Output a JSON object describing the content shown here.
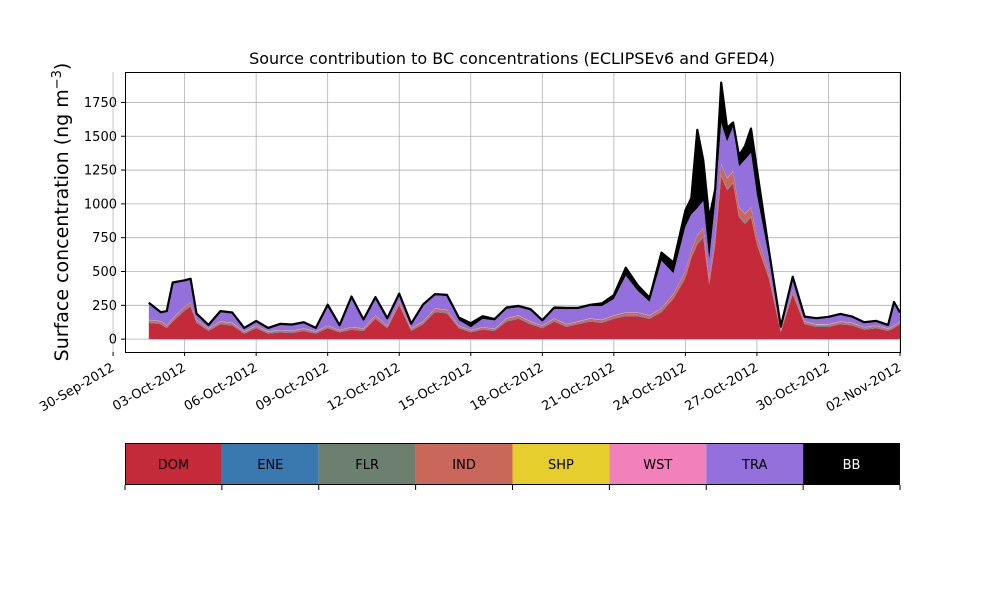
{
  "chart_data": {
    "type": "area",
    "title": "Source contribution to BC concentrations (ECLIPSEv6 and GFED4)",
    "ylabel_main": "Surface concentration (ng m",
    "ylabel_sup": "−3",
    "ylabel_close": ")",
    "xlabel": "",
    "ylim": [
      -95,
      1975
    ],
    "xlim": [
      "2012-09-30T12:00",
      "2012-11-02T00:00"
    ],
    "grid": true,
    "y_ticks": [
      0,
      250,
      500,
      750,
      1000,
      1250,
      1500,
      1750
    ],
    "y_tick_labels": [
      "0",
      "250",
      "500",
      "750",
      "1000",
      "1250",
      "1500",
      "1750"
    ],
    "x_ticks": [
      "2012-09-30",
      "2012-10-03",
      "2012-10-06",
      "2012-10-09",
      "2012-10-12",
      "2012-10-15",
      "2012-10-18",
      "2012-10-21",
      "2012-10-24",
      "2012-10-27",
      "2012-10-30",
      "2012-11-02"
    ],
    "x_tick_labels": [
      "30-Sep-2012",
      "03-Oct-2012",
      "06-Oct-2012",
      "09-Oct-2012",
      "12-Oct-2012",
      "15-Oct-2012",
      "18-Oct-2012",
      "21-Oct-2012",
      "24-Oct-2012",
      "27-Oct-2012",
      "30-Oct-2012",
      "02-Nov-2012"
    ],
    "x": [
      "2012-10-01T12:00",
      "2012-10-02T00:00",
      "2012-10-02T06:00",
      "2012-10-02T12:00",
      "2012-10-03T00:00",
      "2012-10-03T06:00",
      "2012-10-03T12:00",
      "2012-10-04T00:00",
      "2012-10-04T12:00",
      "2012-10-05T00:00",
      "2012-10-05T12:00",
      "2012-10-06T00:00",
      "2012-10-06T12:00",
      "2012-10-07T00:00",
      "2012-10-07T12:00",
      "2012-10-08T00:00",
      "2012-10-08T12:00",
      "2012-10-09T00:00",
      "2012-10-09T12:00",
      "2012-10-10T00:00",
      "2012-10-10T12:00",
      "2012-10-11T00:00",
      "2012-10-11T12:00",
      "2012-10-12T00:00",
      "2012-10-12T12:00",
      "2012-10-13T00:00",
      "2012-10-13T12:00",
      "2012-10-14T00:00",
      "2012-10-14T12:00",
      "2012-10-15T00:00",
      "2012-10-15T12:00",
      "2012-10-16T00:00",
      "2012-10-16T12:00",
      "2012-10-17T00:00",
      "2012-10-17T12:00",
      "2012-10-18T00:00",
      "2012-10-18T12:00",
      "2012-10-19T00:00",
      "2012-10-19T12:00",
      "2012-10-20T00:00",
      "2012-10-20T12:00",
      "2012-10-21T00:00",
      "2012-10-21T12:00",
      "2012-10-22T00:00",
      "2012-10-22T12:00",
      "2012-10-23T00:00",
      "2012-10-23T12:00",
      "2012-10-24T00:00",
      "2012-10-24T06:00",
      "2012-10-24T12:00",
      "2012-10-24T18:00",
      "2012-10-25T00:00",
      "2012-10-25T06:00",
      "2012-10-25T12:00",
      "2012-10-25T18:00",
      "2012-10-26T00:00",
      "2012-10-26T06:00",
      "2012-10-26T12:00",
      "2012-10-26T18:00",
      "2012-10-27T00:00",
      "2012-10-27T12:00",
      "2012-10-28T00:00",
      "2012-10-28T12:00",
      "2012-10-29T00:00",
      "2012-10-29T12:00",
      "2012-10-30T00:00",
      "2012-10-30T12:00",
      "2012-10-31T00:00",
      "2012-10-31T12:00",
      "2012-11-01T00:00",
      "2012-11-01T12:00",
      "2012-11-01T18:00",
      "2012-11-02T00:00"
    ],
    "series": [
      {
        "name": "DOM",
        "color": "#c52a3a",
        "values": [
          120,
          110,
          80,
          130,
          210,
          240,
          120,
          60,
          110,
          100,
          40,
          80,
          40,
          50,
          45,
          60,
          40,
          80,
          50,
          70,
          60,
          150,
          80,
          250,
          60,
          110,
          200,
          190,
          80,
          50,
          70,
          60,
          130,
          150,
          110,
          80,
          130,
          90,
          110,
          130,
          120,
          150,
          170,
          170,
          150,
          200,
          300,
          450,
          600,
          700,
          750,
          400,
          700,
          1200,
          1100,
          1150,
          900,
          850,
          900,
          700,
          450,
          50,
          330,
          110,
          90,
          90,
          110,
          100,
          70,
          80,
          60,
          80,
          110
        ]
      },
      {
        "name": "ENE",
        "color": "#3a78b0",
        "values": [
          3,
          3,
          3,
          3,
          3,
          3,
          3,
          3,
          3,
          3,
          3,
          3,
          3,
          3,
          3,
          3,
          3,
          3,
          3,
          3,
          3,
          3,
          3,
          3,
          3,
          3,
          3,
          3,
          3,
          3,
          3,
          3,
          3,
          3,
          3,
          3,
          3,
          3,
          3,
          3,
          3,
          3,
          3,
          3,
          3,
          3,
          3,
          5,
          5,
          5,
          5,
          5,
          5,
          5,
          5,
          5,
          5,
          5,
          5,
          5,
          5,
          3,
          3,
          3,
          3,
          3,
          3,
          3,
          3,
          3,
          3,
          3,
          3
        ]
      },
      {
        "name": "FLR",
        "color": "#6d8070",
        "values": [
          6,
          6,
          6,
          6,
          6,
          6,
          6,
          6,
          6,
          6,
          6,
          6,
          6,
          6,
          6,
          6,
          6,
          6,
          6,
          6,
          6,
          6,
          6,
          6,
          6,
          6,
          6,
          6,
          6,
          6,
          6,
          6,
          6,
          6,
          6,
          6,
          6,
          6,
          6,
          6,
          6,
          6,
          6,
          6,
          6,
          6,
          6,
          8,
          8,
          8,
          8,
          8,
          8,
          8,
          8,
          8,
          8,
          8,
          8,
          8,
          8,
          6,
          6,
          6,
          6,
          6,
          6,
          6,
          6,
          6,
          6,
          6,
          6
        ]
      },
      {
        "name": "IND",
        "color": "#c9675a",
        "values": [
          12,
          12,
          10,
          12,
          18,
          20,
          12,
          8,
          10,
          10,
          6,
          8,
          6,
          6,
          6,
          8,
          6,
          8,
          6,
          8,
          8,
          14,
          8,
          20,
          8,
          10,
          16,
          16,
          8,
          6,
          8,
          6,
          12,
          14,
          10,
          8,
          12,
          10,
          10,
          12,
          12,
          14,
          16,
          16,
          14,
          18,
          25,
          35,
          45,
          50,
          55,
          35,
          50,
          80,
          75,
          75,
          60,
          60,
          60,
          50,
          35,
          6,
          25,
          10,
          8,
          8,
          10,
          10,
          8,
          8,
          8,
          8,
          10
        ]
      },
      {
        "name": "SHP",
        "color": "#e6cf2c",
        "values": [
          1,
          1,
          1,
          1,
          1,
          1,
          1,
          1,
          1,
          1,
          1,
          1,
          1,
          1,
          1,
          1,
          1,
          1,
          1,
          1,
          1,
          1,
          1,
          1,
          1,
          1,
          1,
          1,
          1,
          1,
          1,
          1,
          1,
          1,
          1,
          1,
          1,
          1,
          1,
          1,
          1,
          1,
          1,
          1,
          1,
          1,
          1,
          1,
          1,
          1,
          1,
          1,
          1,
          1,
          1,
          1,
          1,
          1,
          1,
          1,
          1,
          1,
          1,
          1,
          1,
          1,
          1,
          1,
          1,
          1,
          1,
          1,
          1
        ]
      },
      {
        "name": "WST",
        "color": "#f280ba",
        "values": [
          2,
          2,
          2,
          2,
          2,
          2,
          2,
          2,
          2,
          2,
          2,
          2,
          2,
          2,
          2,
          2,
          2,
          2,
          2,
          2,
          2,
          2,
          2,
          2,
          2,
          2,
          2,
          2,
          2,
          2,
          2,
          2,
          2,
          2,
          2,
          2,
          2,
          2,
          2,
          2,
          2,
          2,
          2,
          2,
          2,
          2,
          2,
          3,
          3,
          3,
          3,
          3,
          3,
          3,
          3,
          3,
          3,
          3,
          3,
          3,
          3,
          2,
          2,
          2,
          2,
          2,
          2,
          2,
          2,
          2,
          2,
          2,
          2
        ]
      },
      {
        "name": "TRA",
        "color": "#9370db",
        "values": [
          120,
          60,
          100,
          260,
          190,
          170,
          40,
          20,
          70,
          70,
          20,
          30,
          20,
          40,
          40,
          40,
          20,
          150,
          30,
          220,
          60,
          130,
          50,
          50,
          30,
          120,
          100,
          100,
          40,
          20,
          60,
          60,
          70,
          60,
          80,
          30,
          70,
          110,
          90,
          90,
          100,
          120,
          270,
          160,
          100,
          350,
          150,
          330,
          260,
          200,
          200,
          140,
          250,
          300,
          270,
          330,
          300,
          400,
          400,
          300,
          110,
          20,
          90,
          30,
          40,
          50,
          50,
          40,
          30,
          30,
          20,
          170,
          60
        ]
      },
      {
        "name": "BB",
        "color": "#000000",
        "values": [
          5,
          5,
          5,
          5,
          5,
          5,
          5,
          5,
          5,
          5,
          5,
          5,
          5,
          5,
          5,
          5,
          5,
          5,
          5,
          5,
          5,
          5,
          5,
          5,
          5,
          5,
          5,
          10,
          20,
          30,
          20,
          10,
          10,
          10,
          10,
          10,
          10,
          10,
          10,
          10,
          20,
          30,
          60,
          40,
          30,
          60,
          80,
          120,
          120,
          580,
          300,
          300,
          90,
          300,
          100,
          30,
          80,
          100,
          180,
          190,
          50,
          5,
          5,
          5,
          5,
          5,
          5,
          5,
          5,
          5,
          5,
          5,
          5
        ]
      }
    ]
  },
  "legend": {
    "entries": [
      {
        "label": "DOM",
        "color": "#c52a3a",
        "text_color": "#000000"
      },
      {
        "label": "ENE",
        "color": "#3a78b0",
        "text_color": "#000000"
      },
      {
        "label": "FLR",
        "color": "#6d8070",
        "text_color": "#000000"
      },
      {
        "label": "IND",
        "color": "#c9675a",
        "text_color": "#000000"
      },
      {
        "label": "SHP",
        "color": "#e6cf2c",
        "text_color": "#000000"
      },
      {
        "label": "WST",
        "color": "#f280ba",
        "text_color": "#000000"
      },
      {
        "label": "TRA",
        "color": "#9370db",
        "text_color": "#000000"
      },
      {
        "label": "BB",
        "color": "#000000",
        "text_color": "#ffffff"
      }
    ]
  }
}
